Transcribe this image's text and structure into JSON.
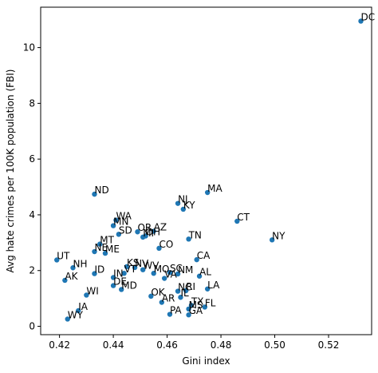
{
  "chart_data": {
    "type": "scatter",
    "xlabel": "Gini index",
    "ylabel": "Avg hate crimes per 100K population (FBI)",
    "xlim": [
      0.413,
      0.536
    ],
    "ylim": [
      -0.3,
      11.45
    ],
    "xticks": [
      0.42,
      0.44,
      0.46,
      0.48,
      0.5,
      0.52
    ],
    "xtick_labels": [
      "0.42",
      "0.44",
      "0.46",
      "0.48",
      "0.50",
      "0.52"
    ],
    "yticks": [
      0,
      2,
      4,
      6,
      8,
      10
    ],
    "ytick_labels": [
      "0",
      "2",
      "4",
      "6",
      "8",
      "10"
    ],
    "point_color": "#1f77b4",
    "points": [
      {
        "label": "DC",
        "x": 0.532,
        "y": 10.95
      },
      {
        "label": "MA",
        "x": 0.475,
        "y": 4.8
      },
      {
        "label": "ND",
        "x": 0.433,
        "y": 4.74
      },
      {
        "label": "NJ",
        "x": 0.464,
        "y": 4.41
      },
      {
        "label": "KY",
        "x": 0.466,
        "y": 4.2
      },
      {
        "label": "CT",
        "x": 0.486,
        "y": 3.77
      },
      {
        "label": "WA",
        "x": 0.441,
        "y": 3.81
      },
      {
        "label": "MN",
        "x": 0.44,
        "y": 3.61
      },
      {
        "label": "OR",
        "x": 0.449,
        "y": 3.39
      },
      {
        "label": "AZ",
        "x": 0.455,
        "y": 3.41
      },
      {
        "label": "SD",
        "x": 0.442,
        "y": 3.3
      },
      {
        "label": "MI",
        "x": 0.451,
        "y": 3.2
      },
      {
        "label": "OH",
        "x": 0.452,
        "y": 3.24
      },
      {
        "label": "TN",
        "x": 0.468,
        "y": 3.13
      },
      {
        "label": "NY",
        "x": 0.499,
        "y": 3.1
      },
      {
        "label": "MT",
        "x": 0.435,
        "y": 2.95
      },
      {
        "label": "CO",
        "x": 0.457,
        "y": 2.8
      },
      {
        "label": "NE",
        "x": 0.433,
        "y": 2.68
      },
      {
        "label": "ME",
        "x": 0.437,
        "y": 2.62
      },
      {
        "label": "CA",
        "x": 0.471,
        "y": 2.39
      },
      {
        "label": "UT",
        "x": 0.419,
        "y": 2.38
      },
      {
        "label": "KS",
        "x": 0.445,
        "y": 2.14
      },
      {
        "label": "NH",
        "x": 0.425,
        "y": 2.1
      },
      {
        "label": "NV",
        "x": 0.448,
        "y": 2.11
      },
      {
        "label": "WV",
        "x": 0.451,
        "y": 2.03
      },
      {
        "label": "SC",
        "x": 0.461,
        "y": 1.93
      },
      {
        "label": "NM",
        "x": 0.464,
        "y": 1.88
      },
      {
        "label": "ID",
        "x": 0.433,
        "y": 1.89
      },
      {
        "label": "VT",
        "x": 0.444,
        "y": 1.9
      },
      {
        "label": "MO",
        "x": 0.455,
        "y": 1.9
      },
      {
        "label": "AL",
        "x": 0.472,
        "y": 1.8
      },
      {
        "label": "IN",
        "x": 0.44,
        "y": 1.75
      },
      {
        "label": "VA",
        "x": 0.459,
        "y": 1.72
      },
      {
        "label": "AK",
        "x": 0.422,
        "y": 1.65
      },
      {
        "label": "DE",
        "x": 0.44,
        "y": 1.46
      },
      {
        "label": "MD",
        "x": 0.443,
        "y": 1.32
      },
      {
        "label": "LA",
        "x": 0.475,
        "y": 1.34
      },
      {
        "label": "RI",
        "x": 0.467,
        "y": 1.28
      },
      {
        "label": "NC",
        "x": 0.464,
        "y": 1.26
      },
      {
        "label": "WI",
        "x": 0.43,
        "y": 1.12
      },
      {
        "label": "OK",
        "x": 0.454,
        "y": 1.08
      },
      {
        "label": "IL",
        "x": 0.465,
        "y": 1.04
      },
      {
        "label": "AR",
        "x": 0.458,
        "y": 0.86
      },
      {
        "label": "TX",
        "x": 0.469,
        "y": 0.75
      },
      {
        "label": "FL",
        "x": 0.474,
        "y": 0.69
      },
      {
        "label": "MS",
        "x": 0.468,
        "y": 0.62
      },
      {
        "label": "IA",
        "x": 0.427,
        "y": 0.56
      },
      {
        "label": "PA",
        "x": 0.461,
        "y": 0.43
      },
      {
        "label": "GA",
        "x": 0.468,
        "y": 0.41
      },
      {
        "label": "WY",
        "x": 0.423,
        "y": 0.26
      }
    ]
  }
}
